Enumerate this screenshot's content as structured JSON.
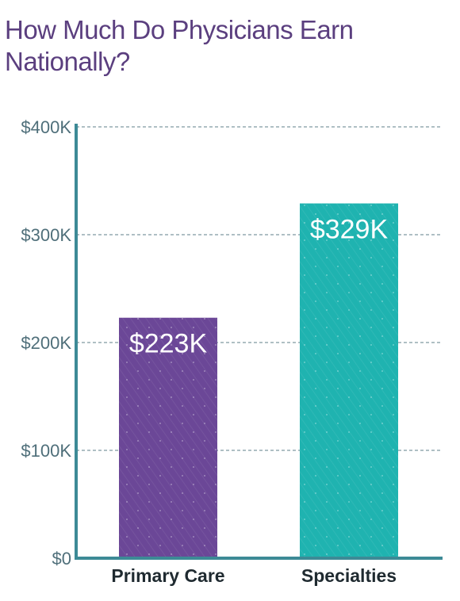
{
  "chart_data": {
    "type": "bar",
    "title": "How Much Do Physicians Earn Nationally?",
    "categories": [
      "Primary Care",
      "Specialties"
    ],
    "values": [
      223,
      329
    ],
    "data_labels": [
      "$223K",
      "$329K"
    ],
    "bar_colors": [
      "#6b4797",
      "#1fb3b0"
    ],
    "yticks": [
      0,
      100,
      200,
      300,
      400
    ],
    "ytick_labels": [
      "$0",
      "$100K",
      "$200K",
      "$300K",
      "$400K"
    ],
    "ylim": [
      0,
      400
    ],
    "grid": true,
    "colors": {
      "title": "#5b3f7f",
      "axis": "#3d8a96",
      "grid": "#5f7f8a"
    }
  }
}
